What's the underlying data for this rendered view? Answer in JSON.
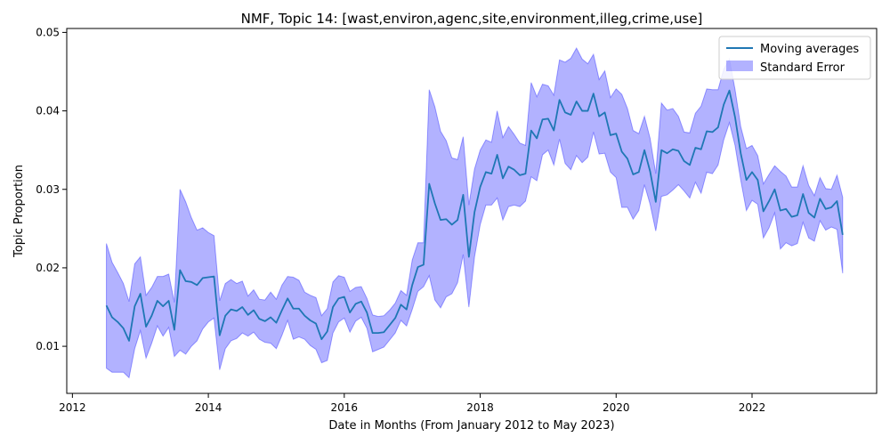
{
  "chart_data": {
    "type": "line",
    "title": "NMF, Topic 14: [wast,environ,agenc,site,environment,illeg,crime,use]",
    "xlabel": "Date in Months (From January 2012 to May 2023)",
    "ylabel": "Topic Proportion",
    "xlim": [
      "2011-12-01",
      "2023-11-01"
    ],
    "ylim": [
      0.004,
      0.0505
    ],
    "x_ticks": [
      "2012",
      "2014",
      "2016",
      "2018",
      "2020",
      "2022"
    ],
    "y_ticks": [
      "0.01",
      "0.02",
      "0.03",
      "0.04",
      "0.05"
    ],
    "legend": {
      "position": "top-right",
      "entries": [
        "Moving averages",
        "Standard Error"
      ]
    },
    "colors": {
      "line": "#1f77b4",
      "band": "#0000ff"
    },
    "grid": false,
    "series": [
      {
        "name": "Moving averages",
        "kind": "line",
        "values": [
          [
            "2012-07",
            0.0152
          ],
          [
            "2012-08",
            0.0137
          ],
          [
            "2012-09",
            0.0131
          ],
          [
            "2012-10",
            0.0123
          ],
          [
            "2012-11",
            0.0107
          ],
          [
            "2012-12",
            0.0151
          ],
          [
            "2013-01",
            0.0167
          ],
          [
            "2013-02",
            0.0125
          ],
          [
            "2013-03",
            0.0139
          ],
          [
            "2013-04",
            0.0158
          ],
          [
            "2013-05",
            0.0151
          ],
          [
            "2013-06",
            0.0158
          ],
          [
            "2013-07",
            0.0121
          ],
          [
            "2013-08",
            0.0197
          ],
          [
            "2013-09",
            0.0183
          ],
          [
            "2013-10",
            0.0182
          ],
          [
            "2013-11",
            0.0178
          ],
          [
            "2013-12",
            0.0187
          ],
          [
            "2014-01",
            0.0188
          ],
          [
            "2014-02",
            0.0189
          ],
          [
            "2014-03",
            0.0114
          ],
          [
            "2014-04",
            0.0139
          ],
          [
            "2014-05",
            0.0147
          ],
          [
            "2014-06",
            0.0145
          ],
          [
            "2014-07",
            0.015
          ],
          [
            "2014-08",
            0.014
          ],
          [
            "2014-09",
            0.0146
          ],
          [
            "2014-10",
            0.0135
          ],
          [
            "2014-11",
            0.0132
          ],
          [
            "2014-12",
            0.0137
          ],
          [
            "2015-01",
            0.013
          ],
          [
            "2015-02",
            0.0146
          ],
          [
            "2015-03",
            0.0161
          ],
          [
            "2015-04",
            0.0148
          ],
          [
            "2015-05",
            0.0148
          ],
          [
            "2015-06",
            0.0139
          ],
          [
            "2015-07",
            0.0133
          ],
          [
            "2015-08",
            0.0129
          ],
          [
            "2015-09",
            0.0109
          ],
          [
            "2015-10",
            0.0119
          ],
          [
            "2015-11",
            0.015
          ],
          [
            "2015-12",
            0.0161
          ],
          [
            "2016-01",
            0.0163
          ],
          [
            "2016-02",
            0.0143
          ],
          [
            "2016-03",
            0.0154
          ],
          [
            "2016-04",
            0.0157
          ],
          [
            "2016-05",
            0.0143
          ],
          [
            "2016-06",
            0.0117
          ],
          [
            "2016-07",
            0.0117
          ],
          [
            "2016-08",
            0.0118
          ],
          [
            "2016-09",
            0.0127
          ],
          [
            "2016-10",
            0.0136
          ],
          [
            "2016-11",
            0.0153
          ],
          [
            "2016-12",
            0.0147
          ],
          [
            "2017-01",
            0.0178
          ],
          [
            "2017-02",
            0.0201
          ],
          [
            "2017-03",
            0.0204
          ],
          [
            "2017-04",
            0.0307
          ],
          [
            "2017-05",
            0.0282
          ],
          [
            "2017-06",
            0.0261
          ],
          [
            "2017-07",
            0.0262
          ],
          [
            "2017-08",
            0.0255
          ],
          [
            "2017-09",
            0.0261
          ],
          [
            "2017-10",
            0.0293
          ],
          [
            "2017-11",
            0.0214
          ],
          [
            "2017-12",
            0.0271
          ],
          [
            "2018-01",
            0.0303
          ],
          [
            "2018-02",
            0.0322
          ],
          [
            "2018-03",
            0.032
          ],
          [
            "2018-04",
            0.0344
          ],
          [
            "2018-05",
            0.0314
          ],
          [
            "2018-06",
            0.0329
          ],
          [
            "2018-07",
            0.0325
          ],
          [
            "2018-08",
            0.0318
          ],
          [
            "2018-09",
            0.032
          ],
          [
            "2018-10",
            0.0375
          ],
          [
            "2018-11",
            0.0365
          ],
          [
            "2018-12",
            0.0389
          ],
          [
            "2019-01",
            0.039
          ],
          [
            "2019-02",
            0.0375
          ],
          [
            "2019-03",
            0.0414
          ],
          [
            "2019-04",
            0.0398
          ],
          [
            "2019-05",
            0.0395
          ],
          [
            "2019-06",
            0.0412
          ],
          [
            "2019-07",
            0.04
          ],
          [
            "2019-08",
            0.04
          ],
          [
            "2019-09",
            0.0422
          ],
          [
            "2019-10",
            0.0393
          ],
          [
            "2019-11",
            0.0398
          ],
          [
            "2019-12",
            0.0369
          ],
          [
            "2020-01",
            0.0371
          ],
          [
            "2020-02",
            0.0348
          ],
          [
            "2020-03",
            0.0339
          ],
          [
            "2020-04",
            0.0319
          ],
          [
            "2020-05",
            0.0322
          ],
          [
            "2020-06",
            0.035
          ],
          [
            "2020-07",
            0.0323
          ],
          [
            "2020-08",
            0.0284
          ],
          [
            "2020-09",
            0.035
          ],
          [
            "2020-10",
            0.0346
          ],
          [
            "2020-11",
            0.0351
          ],
          [
            "2020-12",
            0.0349
          ],
          [
            "2021-01",
            0.0336
          ],
          [
            "2021-02",
            0.0331
          ],
          [
            "2021-03",
            0.0353
          ],
          [
            "2021-04",
            0.0351
          ],
          [
            "2021-05",
            0.0374
          ],
          [
            "2021-06",
            0.0373
          ],
          [
            "2021-07",
            0.0379
          ],
          [
            "2021-08",
            0.0408
          ],
          [
            "2021-09",
            0.0426
          ],
          [
            "2021-10",
            0.0392
          ],
          [
            "2021-11",
            0.0346
          ],
          [
            "2021-12",
            0.0312
          ],
          [
            "2022-01",
            0.0322
          ],
          [
            "2022-02",
            0.0312
          ],
          [
            "2022-03",
            0.0272
          ],
          [
            "2022-04",
            0.0285
          ],
          [
            "2022-05",
            0.03
          ],
          [
            "2022-06",
            0.0273
          ],
          [
            "2022-07",
            0.0275
          ],
          [
            "2022-08",
            0.0265
          ],
          [
            "2022-09",
            0.0267
          ],
          [
            "2022-10",
            0.0294
          ],
          [
            "2022-11",
            0.027
          ],
          [
            "2022-12",
            0.0264
          ],
          [
            "2023-01",
            0.0288
          ],
          [
            "2023-02",
            0.0275
          ],
          [
            "2023-03",
            0.0277
          ],
          [
            "2023-04",
            0.0285
          ],
          [
            "2023-05",
            0.0242
          ]
        ]
      },
      {
        "name": "Standard Error",
        "kind": "band",
        "upper": [
          0.0231,
          0.0207,
          0.0194,
          0.018,
          0.0157,
          0.0205,
          0.0214,
          0.0165,
          0.0175,
          0.0189,
          0.0189,
          0.0192,
          0.0156,
          0.03,
          0.0284,
          0.0264,
          0.0248,
          0.0251,
          0.0245,
          0.0241,
          0.0158,
          0.018,
          0.0185,
          0.018,
          0.0183,
          0.0164,
          0.0172,
          0.016,
          0.0159,
          0.0169,
          0.016,
          0.0178,
          0.0189,
          0.0188,
          0.0184,
          0.0169,
          0.0165,
          0.0162,
          0.0139,
          0.0148,
          0.0182,
          0.019,
          0.0188,
          0.017,
          0.0175,
          0.0176,
          0.0161,
          0.014,
          0.0138,
          0.0139,
          0.0146,
          0.0155,
          0.0171,
          0.0165,
          0.021,
          0.0232,
          0.0232,
          0.0427,
          0.0405,
          0.0374,
          0.0362,
          0.034,
          0.0338,
          0.0367,
          0.028,
          0.0326,
          0.035,
          0.0363,
          0.036,
          0.04,
          0.0366,
          0.038,
          0.037,
          0.0359,
          0.0356,
          0.0436,
          0.0418,
          0.0434,
          0.0432,
          0.042,
          0.0465,
          0.0462,
          0.0467,
          0.048,
          0.0466,
          0.046,
          0.0472,
          0.044,
          0.0451,
          0.0417,
          0.0428,
          0.0421,
          0.0403,
          0.0375,
          0.0371,
          0.0393,
          0.0365,
          0.032,
          0.041,
          0.0401,
          0.0403,
          0.0393,
          0.0373,
          0.0372,
          0.0397,
          0.0406,
          0.0428,
          0.0427,
          0.0427,
          0.0453,
          0.0466,
          0.0427,
          0.038,
          0.0352,
          0.0356,
          0.0343,
          0.0307,
          0.0319,
          0.033,
          0.0323,
          0.0317,
          0.0303,
          0.0303,
          0.033,
          0.0305,
          0.0292,
          0.0315,
          0.0301,
          0.03,
          0.0318,
          0.029
        ],
        "lower": [
          0.0072,
          0.0067,
          0.0067,
          0.0067,
          0.006,
          0.0097,
          0.012,
          0.0085,
          0.0104,
          0.0126,
          0.0113,
          0.0124,
          0.0087,
          0.0095,
          0.009,
          0.01,
          0.0107,
          0.0122,
          0.0131,
          0.0136,
          0.007,
          0.0097,
          0.0107,
          0.011,
          0.0117,
          0.0113,
          0.0118,
          0.0109,
          0.0105,
          0.0104,
          0.0097,
          0.0114,
          0.0133,
          0.0109,
          0.0112,
          0.0109,
          0.0101,
          0.0096,
          0.0079,
          0.0082,
          0.0117,
          0.0131,
          0.0136,
          0.0118,
          0.0132,
          0.0137,
          0.0123,
          0.0093,
          0.0096,
          0.0099,
          0.0108,
          0.0117,
          0.0133,
          0.0126,
          0.0147,
          0.017,
          0.0176,
          0.019,
          0.0159,
          0.0149,
          0.0163,
          0.0167,
          0.0181,
          0.0217,
          0.015,
          0.0214,
          0.0255,
          0.028,
          0.028,
          0.0289,
          0.0261,
          0.0278,
          0.028,
          0.0278,
          0.0285,
          0.0316,
          0.0311,
          0.0344,
          0.035,
          0.0331,
          0.0364,
          0.0333,
          0.0325,
          0.0343,
          0.0334,
          0.0341,
          0.0373,
          0.0345,
          0.0346,
          0.0322,
          0.0315,
          0.0277,
          0.0277,
          0.0262,
          0.0273,
          0.0306,
          0.0281,
          0.0247,
          0.0291,
          0.0293,
          0.0299,
          0.0306,
          0.0298,
          0.0289,
          0.0309,
          0.0295,
          0.0322,
          0.032,
          0.0331,
          0.0363,
          0.0385,
          0.0356,
          0.0312,
          0.0273,
          0.0286,
          0.0281,
          0.0238,
          0.0251,
          0.027,
          0.0224,
          0.0232,
          0.0228,
          0.0231,
          0.0258,
          0.0238,
          0.0234,
          0.026,
          0.0248,
          0.0252,
          0.0249,
          0.0193
        ]
      }
    ]
  }
}
